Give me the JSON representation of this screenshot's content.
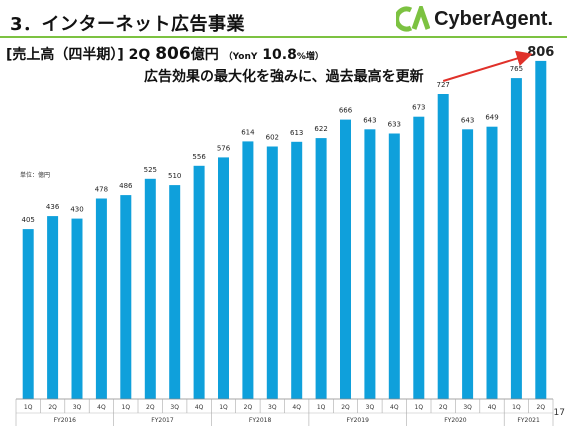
{
  "header": {
    "title": "3．インターネット広告事業",
    "brand": "CyberAgent."
  },
  "headline": {
    "bracket": "[売上高（四半期）]",
    "quarter": "2Q",
    "value": "806",
    "unit": "億円",
    "yoy_open": "（YonY",
    "yoy_value": "10.8",
    "yoy_close": "%増）",
    "subline": "広告効果の最大化を強みに、過去最高を更新"
  },
  "unit_label": "単位：億円",
  "page_number": "17",
  "colors": {
    "bar": "#0fa0db",
    "accent": "#7cc241",
    "arrow": "#e0312a",
    "logo_green": "#7cc241"
  },
  "chart_data": {
    "type": "bar",
    "categories": [
      "1Q",
      "2Q",
      "3Q",
      "4Q",
      "1Q",
      "2Q",
      "3Q",
      "4Q",
      "1Q",
      "2Q",
      "3Q",
      "4Q",
      "1Q",
      "2Q",
      "3Q",
      "4Q",
      "1Q",
      "2Q",
      "3Q",
      "4Q",
      "1Q",
      "2Q"
    ],
    "groups": [
      "FY2016",
      "FY2017",
      "FY2018",
      "FY2019",
      "FY2020",
      "FY2021"
    ],
    "group_of": [
      0,
      0,
      0,
      0,
      1,
      1,
      1,
      1,
      2,
      2,
      2,
      2,
      3,
      3,
      3,
      3,
      4,
      4,
      4,
      4,
      5,
      5
    ],
    "values": [
      405,
      436,
      430,
      478,
      486,
      525,
      510,
      556,
      576,
      614,
      602,
      613,
      622,
      666,
      643,
      633,
      673,
      727,
      643,
      649,
      765,
      806
    ],
    "ylim": [
      0,
      850
    ],
    "highlight_last": true,
    "arrow_from_index": 17,
    "arrow_to_index": 21
  }
}
